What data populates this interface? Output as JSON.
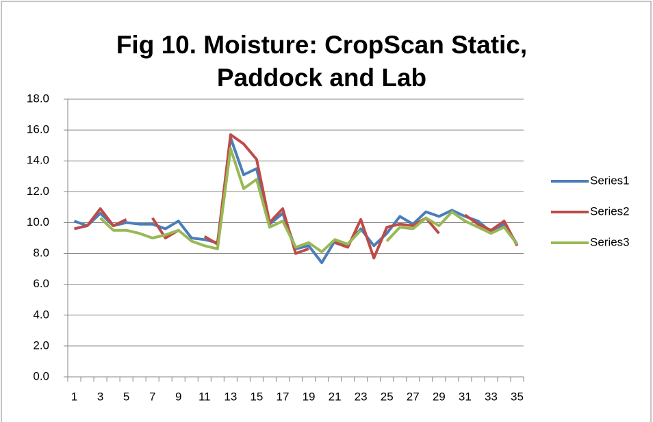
{
  "chart_data": {
    "type": "line",
    "title": "Fig 10. Moisture: CropScan Static, Paddock and Lab",
    "categories": [
      "1",
      null,
      "3",
      null,
      "5",
      null,
      "7",
      null,
      "9",
      null,
      "11",
      null,
      "13",
      null,
      "15",
      null,
      "17",
      null,
      "19",
      null,
      "21",
      null,
      "23",
      null,
      "25",
      null,
      "27",
      null,
      "29",
      null,
      "31",
      null,
      "33",
      null,
      "35"
    ],
    "series": [
      {
        "name": "Series1",
        "color": "#4a7ebb",
        "values": [
          10.1,
          9.8,
          10.6,
          9.8,
          10.0,
          9.9,
          9.9,
          9.6,
          10.1,
          9.0,
          8.9,
          8.7,
          15.5,
          13.1,
          13.5,
          9.9,
          10.6,
          8.3,
          8.5,
          7.4,
          8.8,
          8.6,
          9.6,
          8.5,
          9.3,
          10.4,
          9.9,
          10.7,
          10.4,
          10.8,
          10.4,
          10.1,
          9.4,
          9.9,
          8.6
        ]
      },
      {
        "name": "Series2",
        "color": "#be4b48",
        "values": [
          9.6,
          9.8,
          10.9,
          9.8,
          10.2,
          null,
          10.3,
          9.0,
          9.5,
          null,
          9.1,
          8.6,
          15.7,
          15.1,
          14.1,
          10.0,
          10.9,
          8.0,
          8.3,
          null,
          8.7,
          8.4,
          10.2,
          7.7,
          9.7,
          9.9,
          9.8,
          10.3,
          9.3,
          null,
          10.5,
          9.9,
          9.5,
          10.1,
          8.5
        ]
      },
      {
        "name": "Series3",
        "color": "#98b954",
        "values": [
          null,
          null,
          10.3,
          9.5,
          9.5,
          9.3,
          9.0,
          9.2,
          9.5,
          8.8,
          8.5,
          8.3,
          14.8,
          12.2,
          12.8,
          9.7,
          10.1,
          8.4,
          8.7,
          8.1,
          8.9,
          8.6,
          9.5,
          null,
          8.8,
          9.7,
          9.6,
          10.3,
          9.8,
          10.7,
          10.1,
          9.7,
          9.3,
          9.7,
          8.6
        ]
      }
    ],
    "ylim": [
      0,
      18
    ],
    "yticks": [
      {
        "value": 0,
        "label": "0.0"
      },
      {
        "value": 2,
        "label": "2.0"
      },
      {
        "value": 4,
        "label": "4.0"
      },
      {
        "value": 6,
        "label": "6.0"
      },
      {
        "value": 8,
        "label": "8.0"
      },
      {
        "value": 10,
        "label": "10.0"
      },
      {
        "value": 12,
        "label": "12.0"
      },
      {
        "value": 14,
        "label": "14.0"
      },
      {
        "value": 16,
        "label": "16.0"
      },
      {
        "value": 18,
        "label": "18.0"
      }
    ],
    "grid": true,
    "legend": "right"
  }
}
